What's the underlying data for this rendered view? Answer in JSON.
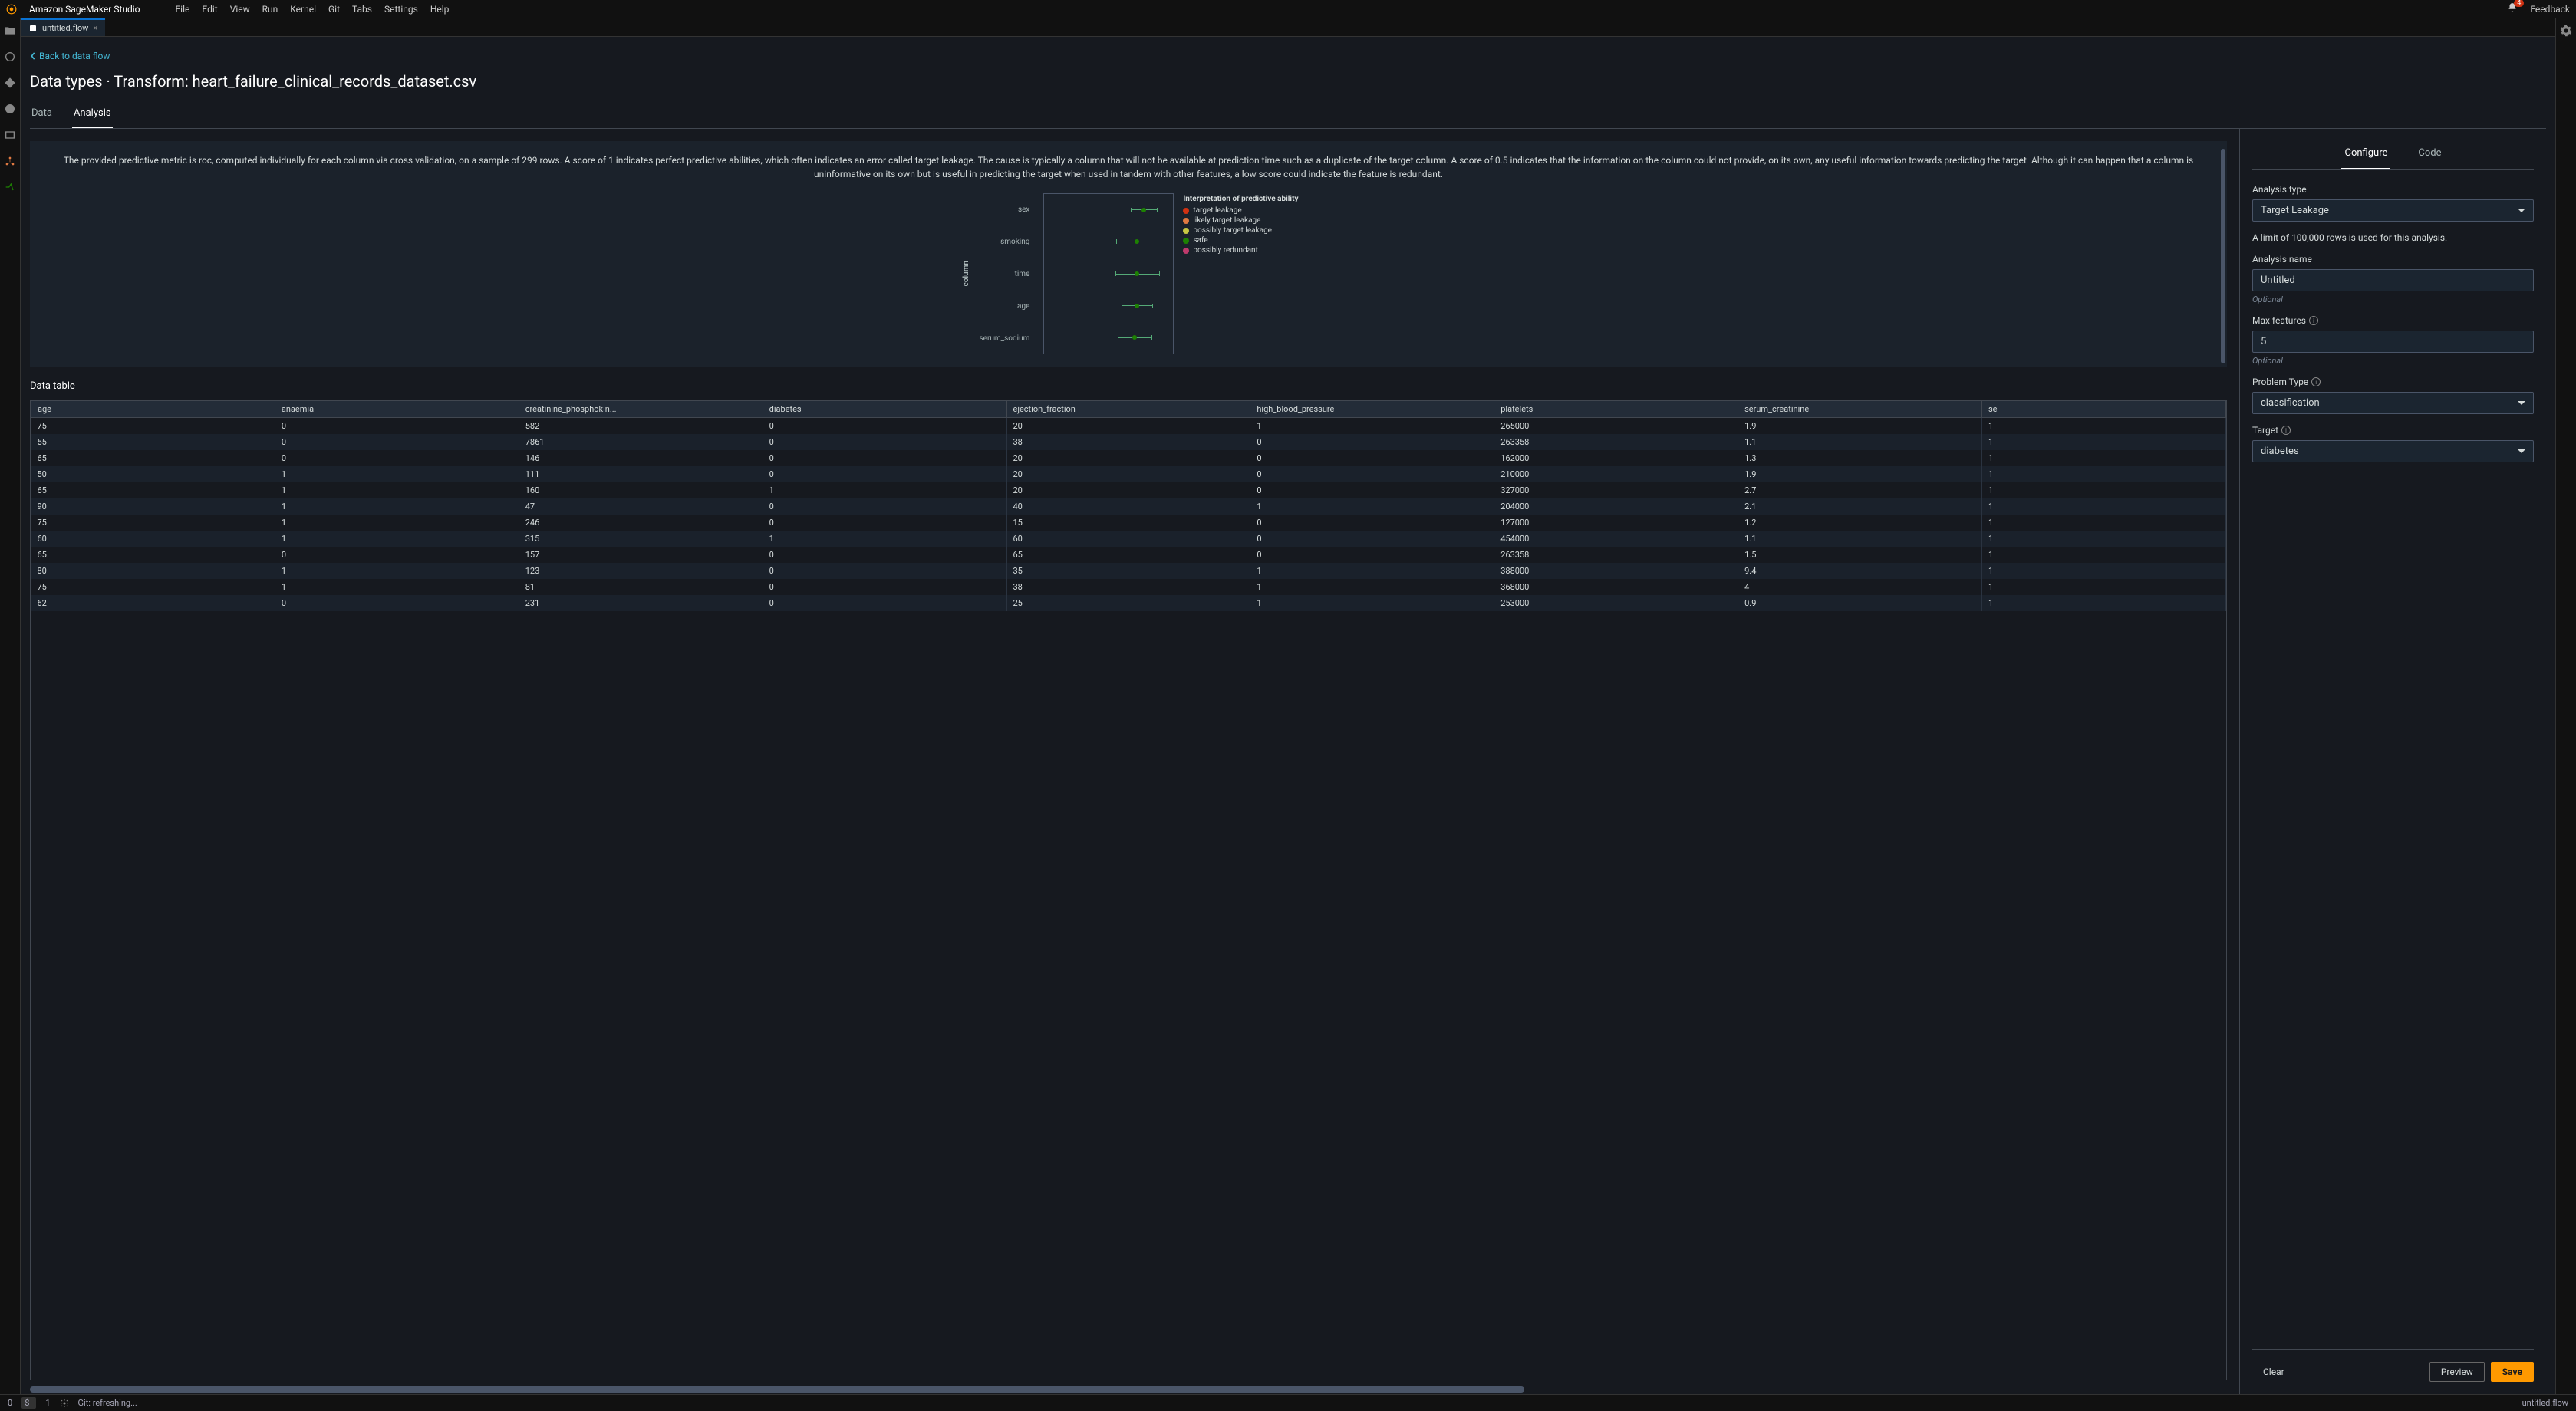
{
  "topMenu": {
    "appTitle": "Amazon SageMaker Studio",
    "menus": [
      "File",
      "Edit",
      "View",
      "Run",
      "Kernel",
      "Git",
      "Tabs",
      "Settings",
      "Help"
    ],
    "notifCount": "4",
    "feedback": "Feedback"
  },
  "tab": {
    "name": "untitled.flow"
  },
  "backLink": "Back to data flow",
  "pageTitle": "Data types · Transform: heart_failure_clinical_records_dataset.csv",
  "viewTabs": {
    "data": "Data",
    "analysis": "Analysis"
  },
  "description": "The provided predictive metric is roc, computed individually for each column via cross validation, on a sample of 299 rows. A score of 1 indicates perfect predictive abilities, which often indicates an error called target leakage. The cause is typically a column that will not be available at prediction time such as a duplicate of the target column. A score of 0.5 indicates that the information on the column could not provide, on its own, any useful information towards predicting the target. Although it can happen that a column is uninformative on its own but is useful in predicting the target when used in tandem with other features, a low score could indicate the feature is redundant.",
  "chart": {
    "axisLabel": "column",
    "categories": [
      "sex",
      "smoking",
      "time",
      "age",
      "serum_sodium"
    ],
    "legendTitle": "Interpretation of predictive ability",
    "legend": [
      {
        "label": "target leakage",
        "color": "#d13212"
      },
      {
        "label": "likely target leakage",
        "color": "#e07941"
      },
      {
        "label": "possibly target leakage",
        "color": "#c7c743"
      },
      {
        "label": "safe",
        "color": "#1d8102"
      },
      {
        "label": "possibly redundant",
        "color": "#bf3a6c"
      }
    ],
    "points": [
      {
        "y": 0,
        "x": 0.77,
        "err": 0.1
      },
      {
        "y": 1,
        "x": 0.72,
        "err": 0.16
      },
      {
        "y": 2,
        "x": 0.72,
        "err": 0.17
      },
      {
        "y": 3,
        "x": 0.72,
        "err": 0.12
      },
      {
        "y": 4,
        "x": 0.7,
        "err": 0.13
      }
    ],
    "markerColor": "#1d8102",
    "errColor": "#5a7"
  },
  "dataTableTitle": "Data table",
  "table": {
    "columns": [
      "age",
      "anaemia",
      "creatinine_phosphokin...",
      "diabetes",
      "ejection_fraction",
      "high_blood_pressure",
      "platelets",
      "serum_creatinine",
      "se"
    ],
    "rows": [
      [
        "75",
        "0",
        "582",
        "0",
        "20",
        "1",
        "265000",
        "1.9",
        "1"
      ],
      [
        "55",
        "0",
        "7861",
        "0",
        "38",
        "0",
        "263358",
        "1.1",
        "1"
      ],
      [
        "65",
        "0",
        "146",
        "0",
        "20",
        "0",
        "162000",
        "1.3",
        "1"
      ],
      [
        "50",
        "1",
        "111",
        "0",
        "20",
        "0",
        "210000",
        "1.9",
        "1"
      ],
      [
        "65",
        "1",
        "160",
        "1",
        "20",
        "0",
        "327000",
        "2.7",
        "1"
      ],
      [
        "90",
        "1",
        "47",
        "0",
        "40",
        "1",
        "204000",
        "2.1",
        "1"
      ],
      [
        "75",
        "1",
        "246",
        "0",
        "15",
        "0",
        "127000",
        "1.2",
        "1"
      ],
      [
        "60",
        "1",
        "315",
        "1",
        "60",
        "0",
        "454000",
        "1.1",
        "1"
      ],
      [
        "65",
        "0",
        "157",
        "0",
        "65",
        "0",
        "263358",
        "1.5",
        "1"
      ],
      [
        "80",
        "1",
        "123",
        "0",
        "35",
        "1",
        "388000",
        "9.4",
        "1"
      ],
      [
        "75",
        "1",
        "81",
        "0",
        "38",
        "1",
        "368000",
        "4",
        "1"
      ],
      [
        "62",
        "0",
        "231",
        "0",
        "25",
        "1",
        "253000",
        "0.9",
        "1"
      ]
    ]
  },
  "configPanel": {
    "tabs": {
      "configure": "Configure",
      "code": "Code"
    },
    "analysisTypeLabel": "Analysis type",
    "analysisTypeValue": "Target Leakage",
    "limitNote": "A limit of 100,000 rows is used for this analysis.",
    "analysisNameLabel": "Analysis name",
    "analysisNameValue": "Untitled",
    "optional": "Optional",
    "maxFeaturesLabel": "Max features",
    "maxFeaturesValue": "5",
    "problemTypeLabel": "Problem Type",
    "problemTypeValue": "classification",
    "targetLabel": "Target",
    "targetValue": "diabetes",
    "clearBtn": "Clear",
    "previewBtn": "Preview",
    "saveBtn": "Save"
  },
  "statusBar": {
    "left0": "0",
    "left1": "1",
    "git": "Git: refreshing...",
    "right": "untitled.flow"
  }
}
